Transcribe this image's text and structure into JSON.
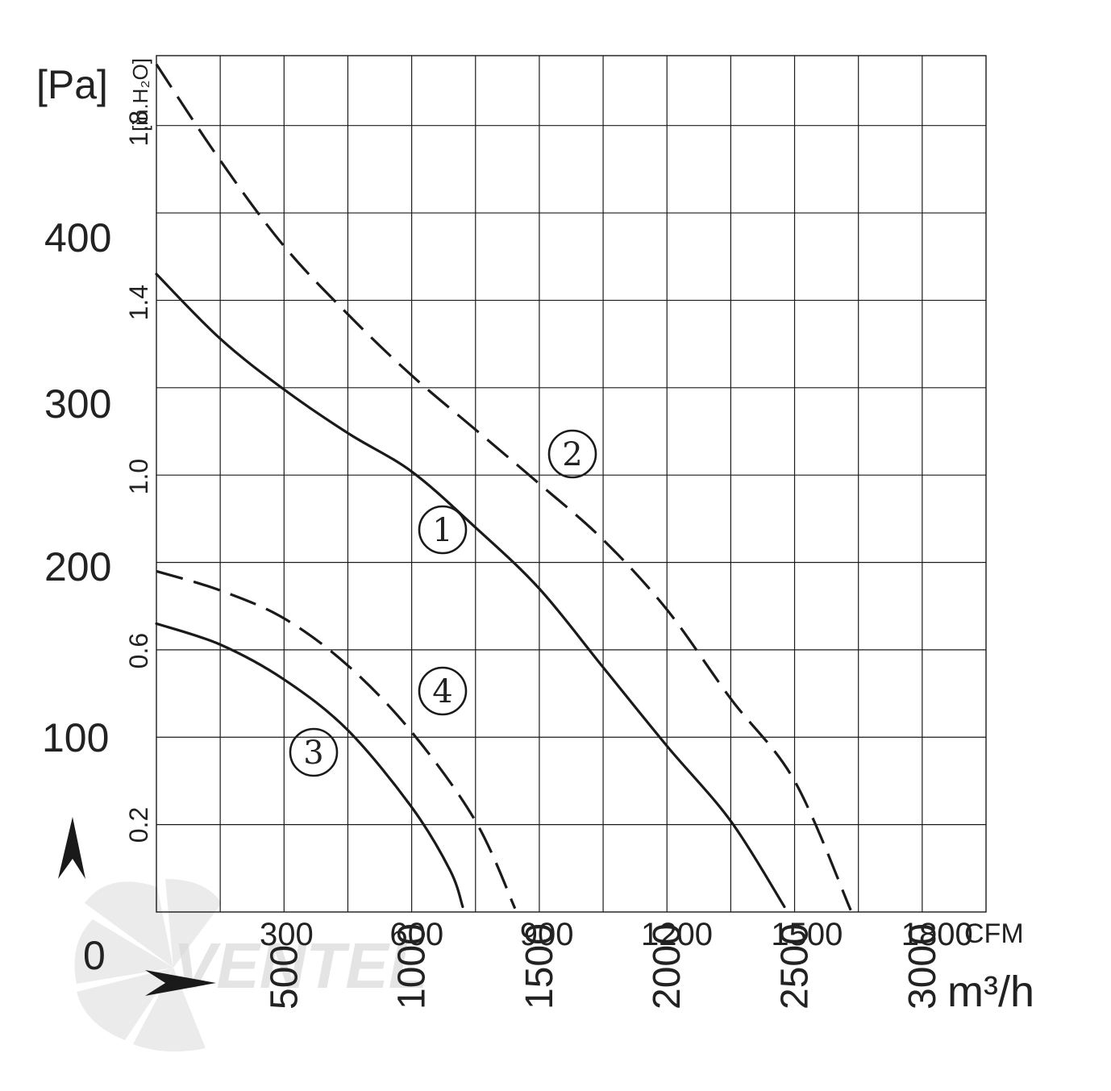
{
  "chart_data": {
    "type": "line",
    "title": "",
    "xlabel": "m³/h",
    "x_unit_top": "CFM",
    "ylabel_left": "[Pa]",
    "ylabel_right": "[in.H₂O]",
    "xlim_m3h": [
      0,
      3250
    ],
    "ylim_pa": [
      0,
      490
    ],
    "grid": true,
    "left_axis_ticks_pa": [
      "400",
      "300",
      "200",
      "100"
    ],
    "left_axis_origin": "0",
    "inh2o_ticks": [
      "1.8",
      "1.4",
      "1.0",
      "0.6",
      "0.2"
    ],
    "cfm_ticks": [
      "300",
      "600",
      "900",
      "1200",
      "1500",
      "1800"
    ],
    "m3h_ticks": [
      "500",
      "1000",
      "1500",
      "2000",
      "2500",
      "3000"
    ],
    "series": [
      {
        "name": "1",
        "style": "solid",
        "points": [
          [
            0,
            365
          ],
          [
            250,
            328
          ],
          [
            500,
            299
          ],
          [
            750,
            274
          ],
          [
            1000,
            252
          ],
          [
            1250,
            220
          ],
          [
            1500,
            185
          ],
          [
            1750,
            140
          ],
          [
            2000,
            95
          ],
          [
            2250,
            52
          ],
          [
            2460,
            3
          ]
        ]
      },
      {
        "name": "2",
        "style": "dashed",
        "points": [
          [
            0,
            485
          ],
          [
            250,
            430
          ],
          [
            500,
            381
          ],
          [
            750,
            342
          ],
          [
            1000,
            307
          ],
          [
            1250,
            276
          ],
          [
            1500,
            245
          ],
          [
            1750,
            213
          ],
          [
            2000,
            173
          ],
          [
            2250,
            122
          ],
          [
            2500,
            75
          ],
          [
            2720,
            1
          ]
        ]
      },
      {
        "name": "3",
        "style": "solid",
        "points": [
          [
            0,
            165
          ],
          [
            250,
            153
          ],
          [
            500,
            133
          ],
          [
            750,
            104
          ],
          [
            1000,
            60
          ],
          [
            1150,
            24
          ],
          [
            1200,
            3
          ]
        ]
      },
      {
        "name": "4",
        "style": "dashed",
        "points": [
          [
            0,
            195
          ],
          [
            250,
            184
          ],
          [
            500,
            168
          ],
          [
            750,
            141
          ],
          [
            1000,
            103
          ],
          [
            1250,
            52
          ],
          [
            1405,
            2
          ]
        ]
      }
    ]
  },
  "watermark": {
    "text": "VENTEL",
    "color": "#d9d9d9"
  },
  "colors": {
    "line": "#1a1a1a",
    "background": "#ffffff"
  }
}
